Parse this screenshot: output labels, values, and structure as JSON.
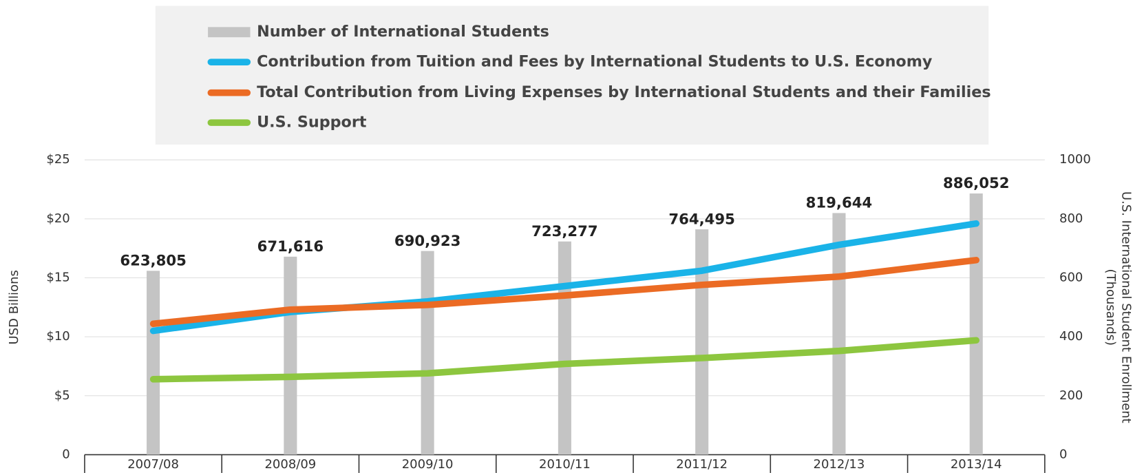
{
  "chart_data": {
    "type": "combo",
    "categories": [
      "2007/08",
      "2008/09",
      "2009/10",
      "2010/11",
      "2011/12",
      "2012/13",
      "2013/14"
    ],
    "series": [
      {
        "name": "Number of International Students",
        "type": "bar",
        "axis": "y2",
        "color": "#c4c4c4",
        "values": [
          623.805,
          671.616,
          690.923,
          723.277,
          764.495,
          819.644,
          886.052
        ],
        "value_labels": [
          "623,805",
          "671,616",
          "690,923",
          "723,277",
          "764,495",
          "819,644",
          "886,052"
        ]
      },
      {
        "name": "Contribution from Tuition and Fees by International Students to U.S. Economy",
        "type": "line",
        "color": "#1ab3e8",
        "values": [
          10.5,
          12.1,
          13.0,
          14.3,
          15.6,
          17.8,
          19.6
        ]
      },
      {
        "name": "Total Contribution from Living Expenses by International Students and their Families",
        "type": "line",
        "color": "#eb6b24",
        "values": [
          11.1,
          12.3,
          12.7,
          13.5,
          14.4,
          15.1,
          16.5
        ]
      },
      {
        "name": "U.S. Support",
        "type": "line",
        "color": "#8dc63f",
        "values": [
          6.4,
          6.6,
          6.9,
          7.7,
          8.2,
          8.8,
          9.7
        ]
      }
    ],
    "ylabel": "USD Billions",
    "y2label": [
      "U.S. International Student Enrollment",
      "(Thousands)"
    ],
    "ylim": [
      0,
      25
    ],
    "yticks": [
      0,
      {
        "value": 5,
        "label": "$5"
      },
      {
        "value": 10,
        "label": "$10"
      },
      {
        "value": 15,
        "label": "$15"
      },
      {
        "value": 20,
        "label": "$20"
      },
      {
        "value": 25,
        "label": "$25"
      }
    ],
    "y2lim": [
      0,
      1000
    ],
    "y2ticks": [
      0,
      200,
      400,
      600,
      800,
      1000
    ],
    "grid": true
  }
}
